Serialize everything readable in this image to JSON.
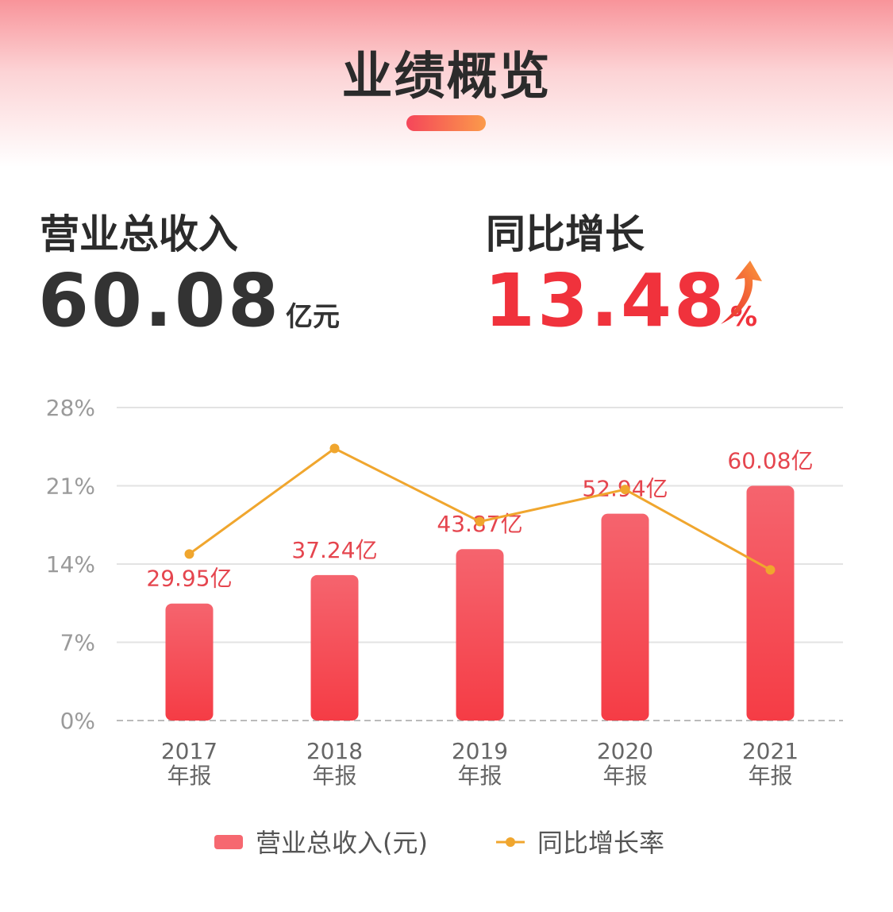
{
  "header": {
    "title": "业绩概览"
  },
  "stats": [
    {
      "label": "营业总收入",
      "value": 60.08,
      "unit": "亿元"
    },
    {
      "label": "同比增长",
      "value": 13.48,
      "unit": "%"
    }
  ],
  "chart_data": {
    "type": "bar",
    "categories": [
      "2017\n年报",
      "2018\n年报",
      "2019\n年报",
      "2020\n年报",
      "2021\n年报"
    ],
    "series": [
      {
        "name": "营业总收入(元)",
        "type": "bar",
        "color": "#f44d57",
        "values": [
          29.95,
          37.24,
          43.87,
          52.94,
          60.08
        ],
        "value_labels": [
          "29.95亿",
          "37.24亿",
          "43.87亿",
          "52.94亿",
          "60.08亿"
        ]
      },
      {
        "name": "同比增长率",
        "type": "line",
        "color": "#f0a62e",
        "values": [
          14.9,
          24.34,
          17.8,
          20.67,
          13.48
        ]
      }
    ],
    "ylim": [
      0,
      28
    ],
    "yticks": [
      {
        "value": 0,
        "label": "0%"
      },
      {
        "value": 7,
        "label": "7%"
      },
      {
        "value": 14,
        "label": "14%"
      },
      {
        "value": 21,
        "label": "21%"
      },
      {
        "value": 28,
        "label": "28%"
      }
    ],
    "grid": true,
    "legend": "bottom"
  }
}
